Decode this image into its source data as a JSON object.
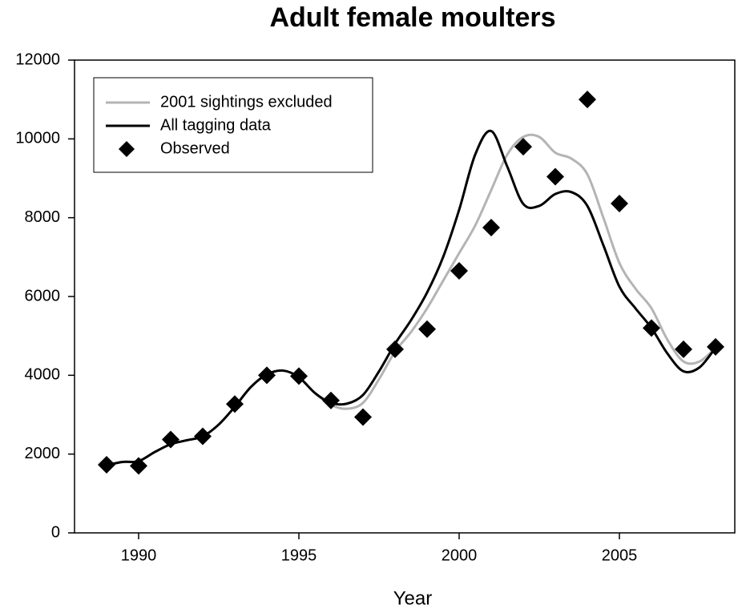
{
  "chart_data": {
    "type": "line",
    "title": "Adult female moulters",
    "xlabel": "Year",
    "xlim": [
      1988,
      2008.6
    ],
    "ylim": [
      0,
      12000
    ],
    "xticks": [
      1990,
      1995,
      2000,
      2005
    ],
    "yticks": [
      0,
      2000,
      4000,
      6000,
      8000,
      10000,
      12000
    ],
    "legend": "upper left",
    "series": [
      {
        "name": "2001 sightings excluded",
        "color": "#b4b4b4",
        "x": [
          1989,
          1989.5,
          1990,
          1990.5,
          1991,
          1991.5,
          1992,
          1992.5,
          1993,
          1993.5,
          1994,
          1994.5,
          1995,
          1995.5,
          1996,
          1996.5,
          1997,
          1997.5,
          1998,
          1998.5,
          1999,
          1999.5,
          2000,
          2000.5,
          2001,
          2001.5,
          2002,
          2002.5,
          2003,
          2003.5,
          2004,
          2004.5,
          2005,
          2005.5,
          2006,
          2006.5,
          2007,
          2007.5,
          2008
        ],
        "values": [
          1720,
          1800,
          1820,
          2050,
          2250,
          2350,
          2450,
          2750,
          3200,
          3700,
          4020,
          4120,
          3950,
          3550,
          3250,
          3150,
          3300,
          3900,
          4600,
          5100,
          5700,
          6400,
          7100,
          7800,
          8700,
          9600,
          10050,
          10050,
          9650,
          9500,
          9100,
          8000,
          6850,
          6200,
          5700,
          4900,
          4350,
          4350,
          4700
        ]
      },
      {
        "name": "All tagging data",
        "color": "#000000",
        "x": [
          1989,
          1989.5,
          1990,
          1990.5,
          1991,
          1991.5,
          1992,
          1992.5,
          1993,
          1993.5,
          1994,
          1994.5,
          1995,
          1995.5,
          1996,
          1996.5,
          1997,
          1997.5,
          1998,
          1998.5,
          1999,
          1999.5,
          2000,
          2000.5,
          2001,
          2001.5,
          2002,
          2002.5,
          2003,
          2003.5,
          2004,
          2004.5,
          2005,
          2005.5,
          2006,
          2006.5,
          2007,
          2007.5,
          2008
        ],
        "values": [
          1720,
          1800,
          1820,
          2050,
          2250,
          2350,
          2450,
          2750,
          3200,
          3700,
          4020,
          4120,
          3950,
          3550,
          3300,
          3280,
          3500,
          4100,
          4800,
          5400,
          6100,
          7000,
          8200,
          9600,
          10200,
          9300,
          8350,
          8300,
          8600,
          8650,
          8300,
          7300,
          6250,
          5700,
          5200,
          4550,
          4100,
          4200,
          4700
        ]
      },
      {
        "name": "Observed",
        "color": "#000000",
        "marker": "diamond",
        "x": [
          1989,
          1990,
          1991,
          1992,
          1993,
          1994,
          1995,
          1996,
          1997,
          1998,
          1999,
          2000,
          2001,
          2002,
          2003,
          2004,
          2005,
          2006,
          2007,
          2008
        ],
        "values": [
          1730,
          1700,
          2370,
          2450,
          3270,
          4000,
          3980,
          3360,
          2940,
          4660,
          5170,
          6650,
          7750,
          9800,
          9040,
          11000,
          8360,
          5200,
          4660,
          4720
        ]
      }
    ]
  }
}
